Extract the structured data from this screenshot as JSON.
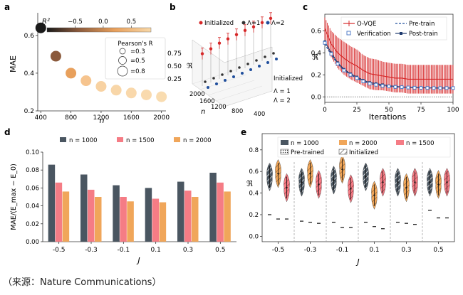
{
  "caption": "（来源：Nature Communications）",
  "panels": {
    "a": {
      "label": "a"
    },
    "b": {
      "label": "b"
    },
    "c": {
      "label": "c"
    },
    "d": {
      "label": "d"
    },
    "e": {
      "label": "e"
    }
  },
  "chart_data": [
    {
      "id": "a",
      "type": "scatter",
      "xlabel": "n",
      "ylabel": "MAE",
      "xlim": [
        360,
        2060
      ],
      "ylim": [
        0.2,
        0.72
      ],
      "xticks": [
        "400",
        "800",
        "1200",
        "1600",
        "2000"
      ],
      "xtick_values": [
        400,
        800,
        1200,
        1600,
        2000
      ],
      "yticks": [
        "0.2",
        "0.4",
        "0.6"
      ],
      "ytick_values": [
        0.2,
        0.4,
        0.6
      ],
      "x": [
        400,
        600,
        800,
        1000,
        1200,
        1400,
        1600,
        1800,
        2000
      ],
      "y": [
        0.64,
        0.49,
        0.4,
        0.36,
        0.33,
        0.31,
        0.295,
        0.285,
        0.275
      ],
      "r_values": [
        -0.8,
        -0.4,
        0.2,
        0.5,
        0.6,
        0.65,
        0.7,
        0.72,
        0.74
      ],
      "colorbar": {
        "label": "R²",
        "ticks": [
          "−0.5",
          "0.0",
          "0.5"
        ],
        "tick_values": [
          -0.5,
          0.0,
          0.5
        ],
        "range": [
          -1.0,
          0.85
        ],
        "colors": [
          "#1a1a1a",
          "#8b5a3c",
          "#e8a05c",
          "#f8d8a8"
        ]
      },
      "size_legend": {
        "title": "Pearson's R",
        "entries": [
          "=0.3",
          "=0.5",
          "=0.8"
        ]
      }
    },
    {
      "id": "b",
      "type": "scatter",
      "xlabel": "n",
      "ylabel": "ℜ",
      "zlabel": "Initialized",
      "zticks": [
        "Initialized",
        "Λ = 1",
        "Λ = 2"
      ],
      "xticks": [
        "2000",
        "1600",
        "1200",
        "800",
        "400"
      ],
      "yticks": [
        "0.25",
        "0.50",
        "0.75"
      ],
      "series": [
        {
          "name": "Initialized",
          "color": "#d62728",
          "x": [
            400,
            600,
            800,
            1000,
            1200,
            1400,
            1600,
            1800,
            2000
          ],
          "values": [
            0.6,
            0.62,
            0.65,
            0.66,
            0.67,
            0.68,
            0.68,
            0.69,
            0.7
          ]
        },
        {
          "name": "Λ=1",
          "color": "#333333",
          "x": [
            400,
            600,
            800,
            1000,
            1200,
            1400,
            1600,
            1800,
            2000
          ],
          "values": [
            0.33,
            0.33,
            0.33,
            0.33,
            0.33,
            0.33,
            0.33,
            0.33,
            0.33
          ]
        },
        {
          "name": "Λ=2",
          "color": "#1f4e9c",
          "x": [
            400,
            600,
            800,
            1000,
            1200,
            1400,
            1600,
            1800,
            2000
          ],
          "values": [
            0.32,
            0.32,
            0.32,
            0.32,
            0.32,
            0.32,
            0.32,
            0.32,
            0.32
          ]
        }
      ]
    },
    {
      "id": "c",
      "type": "line",
      "xlabel": "Iterations",
      "ylabel": "ℜ",
      "xlim": [
        0,
        100
      ],
      "ylim": [
        -0.05,
        0.75
      ],
      "xticks": [
        "0",
        "25",
        "50",
        "75",
        "100"
      ],
      "xtick_values": [
        0,
        25,
        50,
        75,
        100
      ],
      "yticks": [
        "0.0",
        "0.2",
        "0.4",
        "0.6"
      ],
      "ytick_values": [
        0.0,
        0.2,
        0.4,
        0.6
      ],
      "x": [
        0,
        5,
        10,
        15,
        20,
        25,
        30,
        35,
        40,
        45,
        50,
        55,
        60,
        65,
        70,
        75,
        80,
        85,
        90,
        95,
        100
      ],
      "series": [
        {
          "name": "O-VQE",
          "color": "#d62728",
          "style": "solid-errorbar",
          "values": [
            0.62,
            0.48,
            0.4,
            0.35,
            0.31,
            0.28,
            0.24,
            0.21,
            0.2,
            0.19,
            0.18,
            0.17,
            0.17,
            0.16,
            0.16,
            0.16,
            0.16,
            0.16,
            0.16,
            0.16,
            0.16
          ],
          "errors": [
            0.1,
            0.12,
            0.14,
            0.15,
            0.15,
            0.15,
            0.14,
            0.14,
            0.14,
            0.13,
            0.13,
            0.13,
            0.13,
            0.13,
            0.13,
            0.13,
            0.13,
            0.13,
            0.13,
            0.13,
            0.13
          ]
        },
        {
          "name": "Pre-train",
          "color": "#1f4e9c",
          "style": "dashed",
          "values": [
            0.48,
            0.38,
            0.3,
            0.24,
            0.2,
            0.17,
            0.14,
            0.12,
            0.11,
            0.1,
            0.095,
            0.09,
            0.088,
            0.085,
            0.083,
            0.082,
            0.081,
            0.08,
            0.08,
            0.08,
            0.08
          ]
        },
        {
          "name": "Post-train",
          "color": "#1f3a6e",
          "style": "solid-marker",
          "values": [
            0.5,
            0.4,
            0.31,
            0.25,
            0.21,
            0.18,
            0.15,
            0.13,
            0.12,
            0.11,
            0.1,
            0.095,
            0.09,
            0.087,
            0.085,
            0.083,
            0.082,
            0.081,
            0.08,
            0.08,
            0.08
          ]
        },
        {
          "name": "Verification",
          "color": "#4472c4",
          "style": "open-square",
          "values": [
            0.49,
            0.39,
            0.3,
            0.24,
            0.2,
            0.17,
            0.14,
            0.12,
            0.11,
            0.1,
            0.095,
            0.09,
            0.088,
            0.085,
            0.083,
            0.082,
            0.081,
            0.08,
            0.08,
            0.08,
            0.08
          ]
        }
      ],
      "reference_line": 0.0
    },
    {
      "id": "d",
      "type": "bar",
      "xlabel": "J",
      "ylabel": "MAE/(E_max − E_0)",
      "ylim": [
        0,
        0.1
      ],
      "yticks": [
        "0.00",
        "0.02",
        "0.04",
        "0.06",
        "0.08",
        "0.10"
      ],
      "ytick_values": [
        0.0,
        0.02,
        0.04,
        0.06,
        0.08,
        0.1
      ],
      "categories": [
        "-0.5",
        "-0.3",
        "-0.1",
        "0.1",
        "0.3",
        "0.5"
      ],
      "series": [
        {
          "name": "n = 1000",
          "color": "#4a5661",
          "values": [
            0.086,
            0.075,
            0.063,
            0.06,
            0.067,
            0.077
          ]
        },
        {
          "name": "n = 1500",
          "color": "#f57c85",
          "values": [
            0.066,
            0.058,
            0.05,
            0.048,
            0.057,
            0.066
          ]
        },
        {
          "name": "n = 2000",
          "color": "#f0a65a",
          "values": [
            0.056,
            0.05,
            0.045,
            0.044,
            0.05,
            0.056
          ]
        }
      ]
    },
    {
      "id": "e",
      "type": "violin",
      "xlabel": "J",
      "ylabel": "ℜ",
      "ylim": [
        -0.05,
        0.95
      ],
      "yticks": [
        "0.0",
        "0.2",
        "0.4",
        "0.6",
        "0.8"
      ],
      "ytick_values": [
        0.0,
        0.2,
        0.4,
        0.6,
        0.8
      ],
      "categories": [
        "-0.5",
        "-0.3",
        "-0.1",
        "0.1",
        "0.3",
        "0.5"
      ],
      "series": [
        {
          "name": "n = 1000",
          "color": "#4a5661",
          "medians": [
            0.55,
            0.5,
            0.52,
            0.55,
            0.5,
            0.5
          ],
          "pretrained": [
            0.2,
            0.14,
            0.13,
            0.13,
            0.13,
            0.24
          ]
        },
        {
          "name": "n = 2000",
          "color": "#f0a65a",
          "medians": [
            0.58,
            0.58,
            0.62,
            0.38,
            0.45,
            0.48
          ],
          "pretrained": [
            0.16,
            0.13,
            0.08,
            0.09,
            0.12,
            0.17
          ]
        },
        {
          "name": "n = 1500",
          "color": "#f57c85",
          "medians": [
            0.45,
            0.48,
            0.44,
            0.5,
            0.5,
            0.5
          ],
          "pretrained": [
            0.16,
            0.12,
            0.08,
            0.07,
            0.11,
            0.17
          ]
        }
      ],
      "hatch_legend": [
        "Pre-trained",
        "Initialized"
      ]
    }
  ]
}
